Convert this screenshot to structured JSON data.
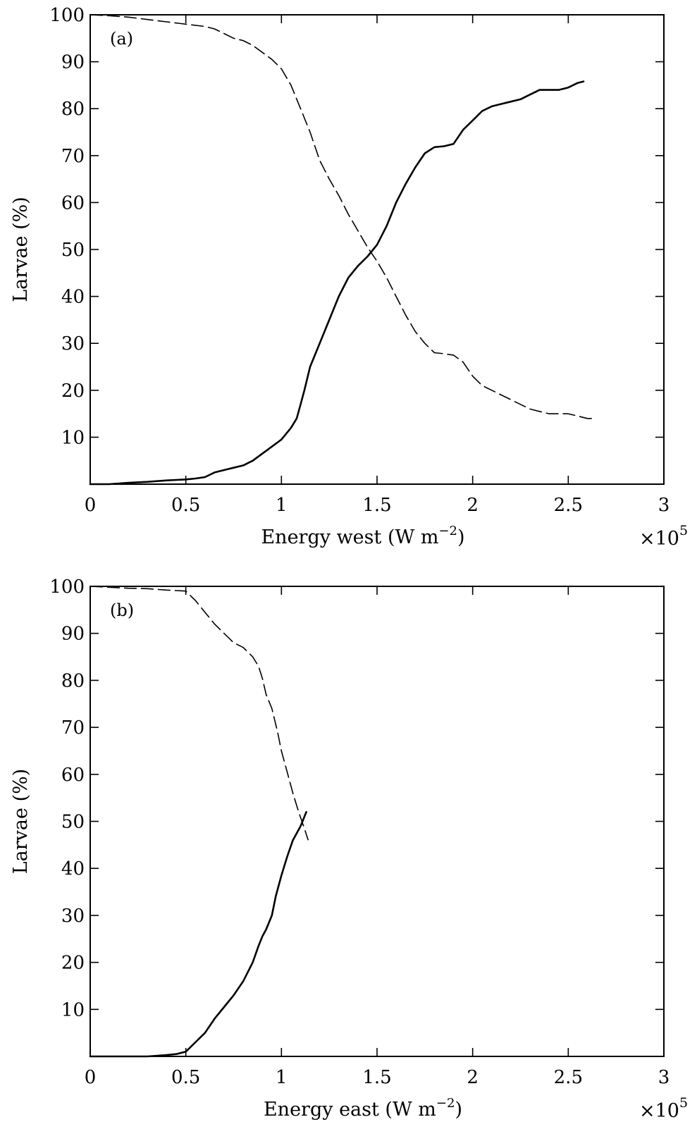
{
  "chart_data": [
    {
      "type": "line",
      "panel_label": "(a)",
      "xlabel": "Energy west (W m",
      "xlabel_sup": "−2",
      "xlabel_end": ")",
      "x_multiplier": "×10",
      "x_multiplier_sup": "5",
      "ylabel": "Larvae (%)",
      "xlim": [
        0,
        3
      ],
      "ylim": [
        0,
        100
      ],
      "x_ticks": [
        0,
        0.5,
        1,
        1.5,
        2,
        2.5,
        3
      ],
      "x_tick_labels": [
        "0",
        "0.5",
        "1",
        "1.5",
        "2",
        "2.5",
        "3"
      ],
      "y_ticks": [
        10,
        20,
        30,
        40,
        50,
        60,
        70,
        80,
        90,
        100
      ],
      "y_tick_labels": [
        "10",
        "20",
        "30",
        "40",
        "50",
        "60",
        "70",
        "80",
        "90",
        "100"
      ],
      "grid": false,
      "series": [
        {
          "style": "solid",
          "x": [
            0,
            0.1,
            0.2,
            0.3,
            0.4,
            0.5,
            0.55,
            0.6,
            0.65,
            0.7,
            0.75,
            0.8,
            0.85,
            0.9,
            0.95,
            1.0,
            1.05,
            1.08,
            1.1,
            1.12,
            1.15,
            1.2,
            1.25,
            1.3,
            1.35,
            1.4,
            1.45,
            1.5,
            1.55,
            1.6,
            1.65,
            1.7,
            1.75,
            1.8,
            1.85,
            1.9,
            1.95,
            2.0,
            2.05,
            2.1,
            2.15,
            2.2,
            2.25,
            2.3,
            2.35,
            2.4,
            2.45,
            2.5,
            2.55,
            2.58
          ],
          "y": [
            0,
            0,
            0.3,
            0.5,
            0.8,
            1,
            1.2,
            1.5,
            2.5,
            3,
            3.5,
            4,
            5,
            6.5,
            8,
            9.5,
            12,
            14,
            17,
            20,
            25,
            30,
            35,
            40,
            44,
            46.5,
            48.5,
            51,
            55,
            60,
            64,
            67.5,
            70.5,
            71.8,
            72,
            72.5,
            75.5,
            77.5,
            79.5,
            80.5,
            81,
            81.5,
            82,
            83,
            84,
            84,
            84,
            84.5,
            85.5,
            85.8
          ]
        },
        {
          "style": "dashed",
          "x": [
            0,
            0.1,
            0.2,
            0.3,
            0.4,
            0.5,
            0.6,
            0.65,
            0.7,
            0.75,
            0.8,
            0.85,
            0.9,
            0.95,
            1.0,
            1.05,
            1.1,
            1.15,
            1.2,
            1.25,
            1.3,
            1.35,
            1.4,
            1.45,
            1.5,
            1.55,
            1.6,
            1.65,
            1.7,
            1.75,
            1.8,
            1.85,
            1.9,
            1.95,
            2.0,
            2.05,
            2.1,
            2.15,
            2.2,
            2.25,
            2.3,
            2.35,
            2.4,
            2.45,
            2.5,
            2.55,
            2.6,
            2.63
          ],
          "y": [
            100,
            99.8,
            99.5,
            99,
            98.5,
            98,
            97.5,
            97,
            96,
            95,
            94.5,
            93.5,
            92,
            90.5,
            88.5,
            85,
            80,
            75,
            69,
            65,
            61.5,
            57.5,
            54,
            50.5,
            47.5,
            44,
            40,
            36,
            32.5,
            30,
            28,
            27.8,
            27.5,
            26,
            23,
            21,
            20,
            19,
            18,
            17,
            16,
            15.5,
            15,
            15,
            15,
            14.5,
            14,
            14
          ]
        }
      ]
    },
    {
      "type": "line",
      "panel_label": "(b)",
      "xlabel": "Energy east (W m",
      "xlabel_sup": "−2",
      "xlabel_end": ")",
      "x_multiplier": "×10",
      "x_multiplier_sup": "5",
      "ylabel": "Larvae (%)",
      "xlim": [
        0,
        3
      ],
      "ylim": [
        0,
        100
      ],
      "x_ticks": [
        0,
        0.5,
        1,
        1.5,
        2,
        2.5,
        3
      ],
      "x_tick_labels": [
        "0",
        "0.5",
        "1",
        "1.5",
        "2",
        "2.5",
        "3"
      ],
      "y_ticks": [
        10,
        20,
        30,
        40,
        50,
        60,
        70,
        80,
        90,
        100
      ],
      "y_tick_labels": [
        "10",
        "20",
        "30",
        "40",
        "50",
        "60",
        "70",
        "80",
        "90",
        "100"
      ],
      "grid": false,
      "series": [
        {
          "style": "solid",
          "x": [
            0,
            0.1,
            0.2,
            0.3,
            0.4,
            0.45,
            0.5,
            0.55,
            0.6,
            0.65,
            0.7,
            0.75,
            0.8,
            0.85,
            0.88,
            0.9,
            0.92,
            0.95,
            0.97,
            1.0,
            1.03,
            1.06,
            1.1,
            1.13
          ],
          "y": [
            0,
            0,
            0,
            0,
            0.3,
            0.5,
            1,
            3,
            5,
            8,
            10.5,
            13,
            16,
            20,
            23.5,
            25.5,
            27,
            30,
            34,
            38.5,
            42.5,
            46,
            49,
            52
          ]
        },
        {
          "style": "dashed",
          "x": [
            0,
            0.1,
            0.2,
            0.3,
            0.4,
            0.5,
            0.55,
            0.6,
            0.65,
            0.7,
            0.75,
            0.8,
            0.85,
            0.88,
            0.9,
            0.92,
            0.95,
            0.98,
            1.0,
            1.03,
            1.06,
            1.09,
            1.12,
            1.14
          ],
          "y": [
            100,
            99.8,
            99.6,
            99.5,
            99.2,
            99,
            97,
            94.5,
            92,
            90,
            88,
            87,
            85,
            83,
            80.5,
            77,
            74,
            69,
            65,
            60.5,
            56,
            52,
            48.5,
            46
          ]
        }
      ]
    }
  ]
}
